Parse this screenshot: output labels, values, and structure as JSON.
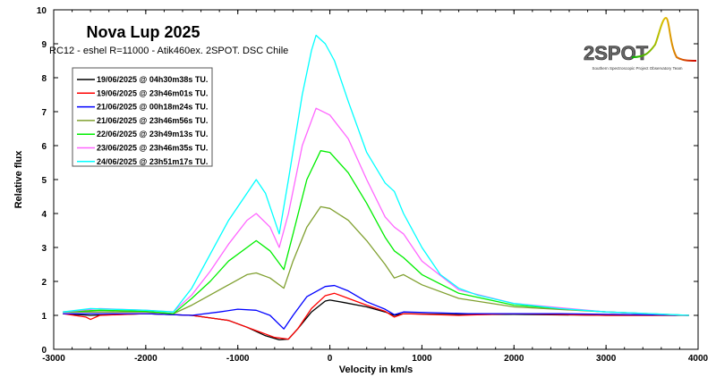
{
  "chart_data": {
    "type": "line",
    "title": "Nova Lup 2025",
    "subtitle": "RC12 - eshel R=11000 - Atik460ex. 2SPOT. DSC Chile",
    "xlabel": "Velocity in km/s",
    "ylabel": "Relative flux",
    "xlim": [
      -3000,
      4000
    ],
    "ylim": [
      0,
      10
    ],
    "xticks": [
      -3000,
      -2000,
      -1000,
      0,
      1000,
      2000,
      3000,
      4000
    ],
    "yticks": [
      0,
      1,
      2,
      3,
      4,
      5,
      6,
      7,
      8,
      9,
      10
    ],
    "legend_position": "top-left",
    "logo": {
      "text": "2SPOT",
      "tagline": "Southern Spectroscopic Project Observatory Team"
    },
    "series": [
      {
        "name": "19/06/2025 @ 04h30m38s TU.",
        "color": "#000000",
        "points": [
          [
            -2900,
            1.05
          ],
          [
            -2600,
            1.0
          ],
          [
            -2000,
            1.05
          ],
          [
            -1500,
            1.0
          ],
          [
            -1100,
            0.85
          ],
          [
            -900,
            0.65
          ],
          [
            -700,
            0.4
          ],
          [
            -550,
            0.28
          ],
          [
            -450,
            0.3
          ],
          [
            -350,
            0.6
          ],
          [
            -200,
            1.1
          ],
          [
            -50,
            1.42
          ],
          [
            0,
            1.45
          ],
          [
            150,
            1.38
          ],
          [
            400,
            1.25
          ],
          [
            600,
            1.1
          ],
          [
            700,
            1.0
          ],
          [
            800,
            1.05
          ],
          [
            1400,
            1.02
          ],
          [
            2000,
            1.03
          ],
          [
            3000,
            1.0
          ],
          [
            3900,
            1.0
          ]
        ]
      },
      {
        "name": "19/06/2025 @ 23h46m01s TU.",
        "color": "#ff0000",
        "points": [
          [
            -2900,
            1.05
          ],
          [
            -2650,
            0.95
          ],
          [
            -2600,
            0.88
          ],
          [
            -2500,
            1.0
          ],
          [
            -2000,
            1.05
          ],
          [
            -1500,
            1.0
          ],
          [
            -1100,
            0.85
          ],
          [
            -800,
            0.55
          ],
          [
            -600,
            0.35
          ],
          [
            -450,
            0.3
          ],
          [
            -350,
            0.6
          ],
          [
            -200,
            1.2
          ],
          [
            -50,
            1.58
          ],
          [
            50,
            1.65
          ],
          [
            200,
            1.5
          ],
          [
            400,
            1.3
          ],
          [
            600,
            1.12
          ],
          [
            700,
            0.95
          ],
          [
            800,
            1.05
          ],
          [
            1400,
            1.0
          ],
          [
            2000,
            1.05
          ],
          [
            3000,
            1.0
          ],
          [
            3900,
            1.0
          ]
        ]
      },
      {
        "name": "21/06/2025 @ 00h18m24s TU.",
        "color": "#0000ff",
        "points": [
          [
            -2900,
            1.05
          ],
          [
            -2500,
            1.05
          ],
          [
            -2000,
            1.05
          ],
          [
            -1500,
            1.0
          ],
          [
            -1200,
            1.1
          ],
          [
            -1000,
            1.18
          ],
          [
            -800,
            1.15
          ],
          [
            -650,
            1.0
          ],
          [
            -500,
            0.6
          ],
          [
            -400,
            1.0
          ],
          [
            -250,
            1.55
          ],
          [
            -50,
            1.85
          ],
          [
            50,
            1.88
          ],
          [
            200,
            1.72
          ],
          [
            400,
            1.4
          ],
          [
            600,
            1.18
          ],
          [
            700,
            1.02
          ],
          [
            800,
            1.1
          ],
          [
            1500,
            1.05
          ],
          [
            2500,
            1.05
          ],
          [
            3900,
            1.0
          ]
        ]
      },
      {
        "name": "21/06/2025 @ 23h46m56s TU.",
        "color": "#80a030",
        "points": [
          [
            -2900,
            1.1
          ],
          [
            -2500,
            1.1
          ],
          [
            -2000,
            1.1
          ],
          [
            -1700,
            1.05
          ],
          [
            -1500,
            1.3
          ],
          [
            -1300,
            1.6
          ],
          [
            -1100,
            1.9
          ],
          [
            -900,
            2.2
          ],
          [
            -800,
            2.25
          ],
          [
            -650,
            2.1
          ],
          [
            -500,
            1.8
          ],
          [
            -400,
            2.6
          ],
          [
            -250,
            3.6
          ],
          [
            -100,
            4.2
          ],
          [
            0,
            4.15
          ],
          [
            200,
            3.8
          ],
          [
            400,
            3.2
          ],
          [
            600,
            2.5
          ],
          [
            700,
            2.1
          ],
          [
            800,
            2.2
          ],
          [
            1000,
            1.9
          ],
          [
            1400,
            1.5
          ],
          [
            2000,
            1.25
          ],
          [
            3000,
            1.1
          ],
          [
            3900,
            1.0
          ]
        ]
      },
      {
        "name": "22/06/2025 @ 23h49m13s TU.",
        "color": "#00ee00",
        "points": [
          [
            -2900,
            1.1
          ],
          [
            -2500,
            1.15
          ],
          [
            -2000,
            1.12
          ],
          [
            -1700,
            1.05
          ],
          [
            -1500,
            1.5
          ],
          [
            -1300,
            2.0
          ],
          [
            -1100,
            2.6
          ],
          [
            -900,
            3.0
          ],
          [
            -800,
            3.2
          ],
          [
            -650,
            2.9
          ],
          [
            -500,
            2.35
          ],
          [
            -400,
            3.4
          ],
          [
            -250,
            5.0
          ],
          [
            -100,
            5.85
          ],
          [
            0,
            5.8
          ],
          [
            200,
            5.2
          ],
          [
            400,
            4.3
          ],
          [
            600,
            3.3
          ],
          [
            700,
            2.9
          ],
          [
            800,
            2.7
          ],
          [
            1000,
            2.2
          ],
          [
            1400,
            1.65
          ],
          [
            2000,
            1.3
          ],
          [
            3000,
            1.1
          ],
          [
            3900,
            1.0
          ]
        ]
      },
      {
        "name": "23/06/2025 @ 23h46m35s TU.",
        "color": "#ff66ff",
        "points": [
          [
            -2900,
            1.1
          ],
          [
            -2500,
            1.2
          ],
          [
            -2000,
            1.15
          ],
          [
            -1700,
            1.1
          ],
          [
            -1500,
            1.6
          ],
          [
            -1300,
            2.3
          ],
          [
            -1100,
            3.1
          ],
          [
            -900,
            3.8
          ],
          [
            -800,
            4.0
          ],
          [
            -650,
            3.6
          ],
          [
            -550,
            3.0
          ],
          [
            -450,
            4.0
          ],
          [
            -300,
            6.0
          ],
          [
            -150,
            7.1
          ],
          [
            0,
            6.9
          ],
          [
            200,
            6.2
          ],
          [
            400,
            5.0
          ],
          [
            600,
            3.9
          ],
          [
            700,
            3.6
          ],
          [
            800,
            3.4
          ],
          [
            1000,
            2.6
          ],
          [
            1400,
            1.75
          ],
          [
            2000,
            1.35
          ],
          [
            3000,
            1.1
          ],
          [
            3900,
            1.0
          ]
        ]
      },
      {
        "name": "24/06/2025 @ 23h51m17s TU.",
        "color": "#00ffff",
        "points": [
          [
            -2900,
            1.1
          ],
          [
            -2600,
            1.2
          ],
          [
            -2000,
            1.15
          ],
          [
            -1700,
            1.1
          ],
          [
            -1500,
            1.8
          ],
          [
            -1300,
            2.8
          ],
          [
            -1100,
            3.8
          ],
          [
            -900,
            4.6
          ],
          [
            -800,
            5.0
          ],
          [
            -700,
            4.6
          ],
          [
            -600,
            3.8
          ],
          [
            -550,
            3.4
          ],
          [
            -450,
            5.0
          ],
          [
            -300,
            7.5
          ],
          [
            -200,
            8.8
          ],
          [
            -150,
            9.25
          ],
          [
            -50,
            9.0
          ],
          [
            50,
            8.5
          ],
          [
            200,
            7.3
          ],
          [
            400,
            5.8
          ],
          [
            600,
            4.9
          ],
          [
            700,
            4.65
          ],
          [
            800,
            4.0
          ],
          [
            1000,
            3.0
          ],
          [
            1200,
            2.2
          ],
          [
            1400,
            1.8
          ],
          [
            1600,
            1.6
          ],
          [
            2000,
            1.35
          ],
          [
            2500,
            1.2
          ],
          [
            3000,
            1.1
          ],
          [
            3500,
            1.05
          ],
          [
            3900,
            1.0
          ]
        ]
      }
    ]
  }
}
